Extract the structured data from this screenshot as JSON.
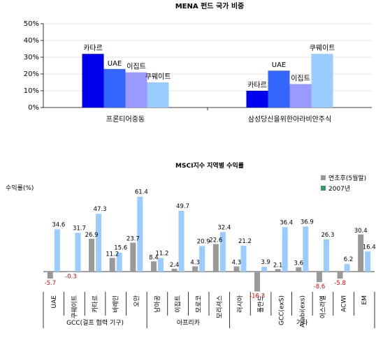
{
  "chart_data": [
    {
      "type": "bar",
      "title": "MENA 펀드 국가 비중",
      "groups": [
        "프론티어중동",
        "삼성당신을위한아라비안주식"
      ],
      "series": [
        {
          "name": "카타르",
          "values": [
            32,
            10
          ],
          "color": "#0000ee"
        },
        {
          "name": "UAE",
          "values": [
            23,
            22
          ],
          "color": "#3366ff"
        },
        {
          "name": "이집트",
          "values": [
            21,
            14
          ],
          "color": "#9999ff"
        },
        {
          "name": "쿠웨이트",
          "values": [
            15,
            32
          ],
          "color": "#99ccff"
        }
      ],
      "yticks": [
        "0%",
        "10%",
        "20%",
        "30%",
        "40%",
        "50%"
      ],
      "ylim": [
        0,
        50
      ]
    },
    {
      "type": "bar",
      "title": "MSCI지수 지역별 수익률",
      "ylabel": "수익률(%)",
      "categories": [
        "UAE",
        "쿠웨이트",
        "카타르",
        "바레인",
        "오만",
        "남아공",
        "이집트",
        "모로코",
        "모리셔스",
        "러시아",
        "폴란드",
        "GCC(exS)",
        "Arabi(exs)",
        "이스라엘",
        "ACWI",
        "EM"
      ],
      "series": [
        {
          "name": "연초후(5월말)",
          "values": [
            -5.7,
            -0.3,
            26.9,
            11.2,
            23.7,
            8.4,
            2.4,
            4.3,
            22.6,
            4.3,
            -16.3,
            2.1,
            3.6,
            -8.6,
            -5.8,
            30.4
          ],
          "color": "#999999"
        },
        {
          "name": "2007년",
          "values": [
            34.6,
            31.7,
            47.3,
            15.6,
            61.4,
            11.2,
            49.7,
            20.9,
            32.4,
            21.2,
            3.9,
            36.4,
            36.9,
            26.3,
            6.2,
            16.4
          ],
          "color": "#99ccff"
        }
      ],
      "regions": [
        {
          "label": "GCC(걸프 협력 기구)",
          "span": 5
        },
        {
          "label": "아프리카",
          "span": 4
        },
        {
          "label": "기타",
          "span": 7
        }
      ],
      "ylim": [
        -20,
        70
      ]
    }
  ]
}
